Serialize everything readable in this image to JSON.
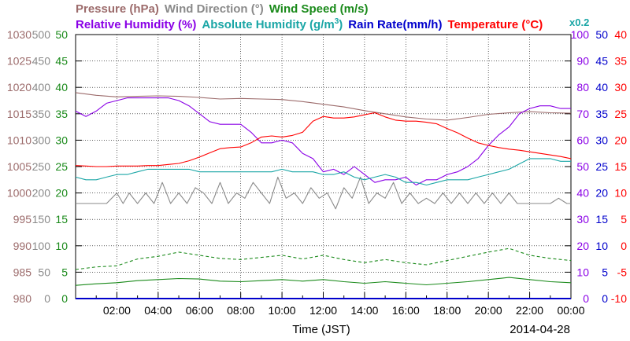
{
  "chart_data": {
    "type": "line",
    "legend_row1": [
      {
        "text": "Pressure (hPa)",
        "color": "#9c6b6b"
      },
      {
        "text": "Wind Direction (°)",
        "color": "#8a8a8a"
      },
      {
        "text": "Wind Speed (m/s)",
        "color": "#1a8a1a"
      }
    ],
    "legend_row2": [
      {
        "text": "Relative Humidity (%)",
        "color": "#8a00e6"
      },
      {
        "text": "Absolute Humidity (g/m",
        "sup": "3",
        "tail": ")",
        "color": "#1aa6a6"
      },
      {
        "text": "Rain Rate(mm/h)",
        "color": "#0000cc"
      },
      {
        "text": "Temperature (°C)",
        "color": "#ff0000"
      },
      {
        "text": "x0.2",
        "color": "#1aa6a6"
      }
    ],
    "xlabel": "Time (JST)",
    "date": "2014-04-28",
    "x_ticks": [
      "02:00",
      "04:00",
      "06:00",
      "08:00",
      "10:00",
      "12:00",
      "14:00",
      "16:00",
      "18:00",
      "20:00",
      "22:00",
      "00:00"
    ],
    "x_range_hours": [
      0,
      24
    ],
    "left_axes": [
      {
        "name": "pressure",
        "color": "#9c6b6b",
        "ylim": [
          980,
          1030
        ],
        "ticks": [
          "980",
          "985",
          "990",
          "995",
          "1000",
          "1005",
          "1010",
          "1015",
          "1020",
          "1025",
          "1030"
        ]
      },
      {
        "name": "wind-direction",
        "color": "#8a8a8a",
        "ylim": [
          0,
          500
        ],
        "ticks": [
          "0",
          "50",
          "100",
          "150",
          "200",
          "250",
          "300",
          "350",
          "400",
          "450",
          "500"
        ]
      },
      {
        "name": "wind-speed",
        "color": "#1a8a1a",
        "ylim": [
          0,
          50
        ],
        "ticks": [
          "0",
          "5",
          "10",
          "15",
          "20",
          "25",
          "30",
          "35",
          "40",
          "45",
          "50"
        ]
      }
    ],
    "right_axes": [
      {
        "name": "relative-humidity",
        "color": "#8a00e6",
        "ylim": [
          0,
          100
        ],
        "ticks": [
          "0",
          "10",
          "20",
          "30",
          "40",
          "50",
          "60",
          "70",
          "80",
          "90",
          "100"
        ]
      },
      {
        "name": "rain-rate",
        "color": "#0000cc",
        "ylim": [
          0,
          50
        ],
        "ticks": [
          "0",
          "5",
          "10",
          "15",
          "20",
          "25",
          "30",
          "35",
          "40",
          "45",
          "50"
        ]
      },
      {
        "name": "temperature",
        "color": "#ff0000",
        "ylim": [
          -10,
          40
        ],
        "ticks": [
          "-10",
          "-5",
          "0",
          "5",
          "10",
          "15",
          "20",
          "25",
          "30",
          "35",
          "40"
        ]
      }
    ],
    "grid": "dotted",
    "series": [
      {
        "name": "Pressure (hPa)",
        "axis": "pressure",
        "color": "#9c6b6b",
        "style": "solid",
        "x": [
          0,
          1,
          2,
          3,
          4,
          5,
          6,
          7,
          8,
          9,
          10,
          11,
          12,
          13,
          14,
          15,
          16,
          17,
          18,
          19,
          20,
          21,
          22,
          23,
          24
        ],
        "y": [
          1019.0,
          1018.5,
          1018.2,
          1018.3,
          1018.4,
          1018.3,
          1018.1,
          1017.8,
          1017.9,
          1017.8,
          1017.7,
          1017.3,
          1016.8,
          1016.3,
          1015.6,
          1015.0,
          1014.4,
          1014.0,
          1013.8,
          1014.3,
          1014.9,
          1015.2,
          1015.4,
          1015.2,
          1015.1
        ]
      },
      {
        "name": "Wind Direction (°)",
        "axis": "wind-direction",
        "color": "#8a8a8a",
        "style": "solid",
        "x": [
          0,
          0.5,
          1,
          1.5,
          2,
          2.3,
          2.6,
          3,
          3.4,
          3.8,
          4.2,
          4.6,
          5,
          5.4,
          5.8,
          6.2,
          6.6,
          7,
          7.4,
          7.8,
          8.2,
          8.6,
          9,
          9.4,
          9.8,
          10.2,
          10.6,
          11,
          11.4,
          11.8,
          12.2,
          12.6,
          13,
          13.4,
          13.8,
          14.2,
          14.6,
          15,
          15.4,
          15.8,
          16.2,
          16.6,
          17,
          17.4,
          17.8,
          18.2,
          18.6,
          19,
          19.4,
          19.8,
          20.2,
          20.6,
          21,
          21.4,
          21.8,
          22.2,
          22.6,
          23,
          23.4,
          23.8,
          24
        ],
        "y": [
          180,
          180,
          180,
          180,
          200,
          180,
          200,
          180,
          200,
          180,
          220,
          180,
          200,
          180,
          210,
          200,
          180,
          220,
          180,
          200,
          190,
          220,
          200,
          180,
          230,
          190,
          200,
          180,
          210,
          190,
          200,
          170,
          210,
          190,
          230,
          180,
          200,
          190,
          220,
          180,
          200,
          180,
          190,
          180,
          200,
          180,
          200,
          180,
          200,
          180,
          200,
          180,
          200,
          180,
          180,
          180,
          180,
          180,
          190,
          180,
          180
        ]
      },
      {
        "name": "Wind Speed (m/s) peak",
        "axis": "wind-speed",
        "color": "#1a8a1a",
        "style": "dashed",
        "x": [
          0,
          1,
          2,
          3,
          4,
          5,
          6,
          7,
          8,
          9,
          10,
          11,
          12,
          13,
          14,
          15,
          16,
          17,
          18,
          19,
          20,
          21,
          22,
          23,
          24
        ],
        "y": [
          5.5,
          6.0,
          6.2,
          7.5,
          8.0,
          8.8,
          8.2,
          7.6,
          7.4,
          7.8,
          8.2,
          7.5,
          8.2,
          7.4,
          6.8,
          7.4,
          6.8,
          6.4,
          7.2,
          8.0,
          8.8,
          9.5,
          8.2,
          7.6,
          7.2
        ]
      },
      {
        "name": "Wind Speed (m/s)",
        "axis": "wind-speed",
        "color": "#1a8a1a",
        "style": "solid",
        "x": [
          0,
          1,
          2,
          3,
          4,
          5,
          6,
          7,
          8,
          9,
          10,
          11,
          12,
          13,
          14,
          15,
          16,
          17,
          18,
          19,
          20,
          21,
          22,
          23,
          24
        ],
        "y": [
          2.5,
          2.8,
          3.0,
          3.4,
          3.6,
          3.8,
          3.7,
          3.3,
          3.2,
          3.4,
          3.6,
          3.3,
          3.6,
          3.2,
          2.9,
          3.2,
          2.9,
          2.6,
          2.9,
          3.2,
          3.6,
          4.0,
          3.6,
          3.2,
          3.0
        ]
      },
      {
        "name": "Relative Humidity (%)",
        "axis": "relative-humidity",
        "color": "#8a00e6",
        "style": "solid",
        "x": [
          0,
          0.5,
          1,
          1.5,
          2,
          2.5,
          3,
          3.5,
          4,
          4.5,
          5,
          5.5,
          6,
          6.5,
          7,
          7.5,
          8,
          8.5,
          9,
          9.5,
          10,
          10.5,
          11,
          11.5,
          12,
          12.5,
          13,
          13.5,
          14,
          14.5,
          15,
          15.5,
          16,
          16.5,
          17,
          17.5,
          18,
          18.5,
          19,
          19.5,
          20,
          20.5,
          21,
          21.5,
          22,
          22.5,
          23,
          23.5,
          24
        ],
        "y": [
          71,
          69,
          71,
          74,
          75,
          76,
          76,
          76,
          76,
          76,
          75,
          73,
          70,
          67,
          66,
          66,
          66,
          63,
          59,
          59,
          60,
          59,
          55,
          53,
          48,
          49,
          47,
          50,
          47,
          44,
          45,
          45,
          46,
          43,
          45,
          45,
          47,
          48,
          50,
          53,
          58,
          62,
          65,
          70,
          72,
          73,
          73,
          72,
          72
        ]
      },
      {
        "name": "Absolute Humidity (g/m3)",
        "axis": "relative-humidity",
        "color": "#1aa6a6",
        "style": "solid",
        "x": [
          0,
          0.5,
          1,
          1.5,
          2,
          2.5,
          3,
          3.5,
          4,
          4.5,
          5,
          5.5,
          6,
          6.5,
          7,
          7.5,
          8,
          8.5,
          9,
          9.5,
          10,
          10.5,
          11,
          11.5,
          12,
          12.5,
          13,
          13.5,
          14,
          14.5,
          15,
          15.5,
          16,
          16.5,
          17,
          17.5,
          18,
          18.5,
          19,
          19.5,
          20,
          20.5,
          21,
          21.5,
          22,
          22.5,
          23,
          23.5,
          24
        ],
        "y": [
          46,
          45,
          45,
          46,
          47,
          47,
          48,
          49,
          49,
          49,
          49,
          49,
          48,
          48,
          48,
          48,
          48,
          48,
          48,
          48,
          49,
          48,
          48,
          48,
          47,
          47,
          48,
          46,
          45,
          46,
          47,
          46,
          44,
          44,
          43,
          44,
          45,
          45,
          45,
          46,
          47,
          48,
          49,
          51,
          53,
          53,
          53,
          52,
          52
        ]
      },
      {
        "name": "Rain Rate(mm/h)",
        "axis": "rain-rate",
        "color": "#0000cc",
        "style": "solid",
        "x": [
          0,
          24
        ],
        "y": [
          0,
          0
        ]
      },
      {
        "name": "Temperature (°C)",
        "axis": "temperature",
        "color": "#ff0000",
        "style": "solid",
        "x": [
          0,
          0.5,
          1,
          1.5,
          2,
          2.5,
          3,
          3.5,
          4,
          4.5,
          5,
          5.5,
          6,
          6.5,
          7,
          7.5,
          8,
          8.5,
          9,
          9.5,
          10,
          10.5,
          11,
          11.5,
          12,
          12.5,
          13,
          13.5,
          14,
          14.5,
          15,
          15.5,
          16,
          16.5,
          17,
          17.5,
          18,
          18.5,
          19,
          19.5,
          20,
          20.5,
          21,
          21.5,
          22,
          22.5,
          23,
          23.5,
          24
        ],
        "y": [
          15.2,
          15.1,
          15.0,
          15.0,
          15.1,
          15.1,
          15.1,
          15.2,
          15.2,
          15.4,
          15.6,
          16.1,
          16.8,
          17.6,
          18.4,
          18.6,
          18.7,
          19.5,
          20.6,
          20.8,
          20.6,
          20.9,
          21.5,
          23.6,
          24.5,
          24.2,
          24.2,
          24.4,
          24.8,
          25.2,
          24.4,
          23.8,
          23.6,
          23.6,
          23.4,
          23.1,
          22.2,
          21.4,
          20.4,
          19.5,
          19.0,
          18.6,
          18.3,
          18.1,
          17.8,
          17.5,
          17.2,
          16.9,
          16.5
        ]
      }
    ]
  }
}
